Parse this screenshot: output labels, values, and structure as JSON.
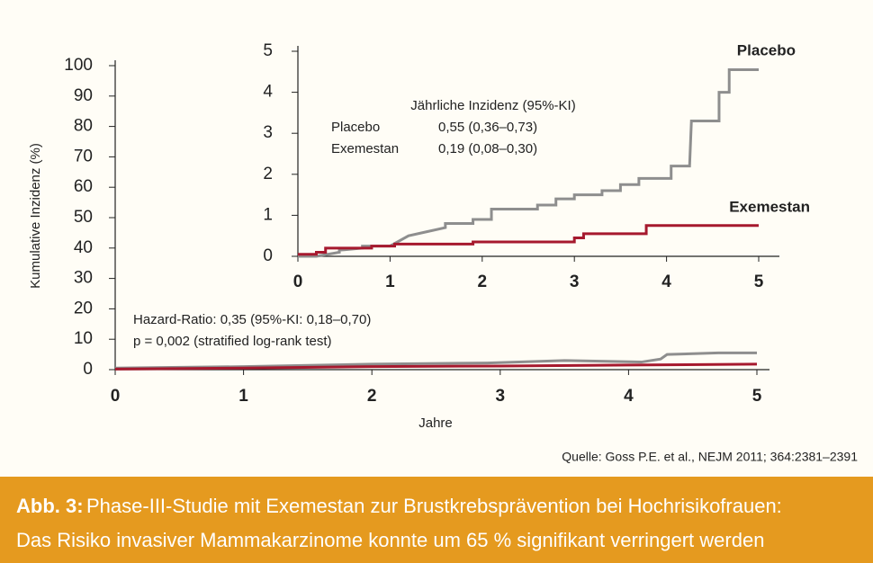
{
  "chart_data": [
    {
      "type": "line",
      "xlabel": "Jahre",
      "ylabel": "Kumulative Inzidenz (%)",
      "xlim": [
        0,
        5
      ],
      "ylim": [
        0,
        100
      ],
      "xticks": [
        0,
        1,
        2,
        3,
        4,
        5
      ],
      "yticks": [
        0,
        10,
        20,
        30,
        40,
        50,
        60,
        70,
        80,
        90,
        100
      ],
      "annotations": [
        "Hazard-Ratio: 0,35 (95%-KI: 0,18–0,70)",
        "p = 0,002 (stratified log-rank test)"
      ],
      "series": [
        {
          "color": "#8e8e8e",
          "x": [
            0,
            1,
            2,
            2.9,
            3.5,
            4.1,
            4.25,
            4.3,
            4.7,
            5
          ],
          "values": [
            0.5,
            1,
            1.8,
            2.2,
            3,
            2.5,
            3.5,
            5,
            5.5,
            5.5
          ]
        },
        {
          "color": "#a6192e",
          "x": [
            0,
            1,
            2,
            3,
            4,
            5
          ],
          "values": [
            0.2,
            0.5,
            1,
            1.2,
            1.5,
            1.8
          ]
        }
      ]
    },
    {
      "type": "line",
      "xlim": [
        0,
        5
      ],
      "ylim": [
        0,
        5
      ],
      "xticks": [
        0,
        1,
        2,
        3,
        4,
        5
      ],
      "yticks": [
        0,
        1,
        2,
        3,
        4,
        5
      ],
      "table": {
        "title": "Jährliche Inzidenz (95%-KI)",
        "rows": [
          [
            "Placebo",
            "0,55 (0,36–0,73)"
          ],
          [
            "Exemestan",
            "0,19 (0,08–0,30)"
          ]
        ]
      },
      "series": [
        {
          "name": "Placebo",
          "color": "#8e8e8e",
          "x": [
            0,
            0.2,
            0.45,
            0.45,
            0.7,
            0.7,
            1.0,
            1.2,
            1.4,
            1.6,
            1.6,
            1.9,
            1.9,
            2.1,
            2.1,
            2.6,
            2.6,
            2.8,
            2.8,
            3.0,
            3.0,
            3.3,
            3.3,
            3.5,
            3.5,
            3.7,
            3.7,
            4.05,
            4.05,
            4.25,
            4.27,
            4.57,
            4.57,
            4.68,
            4.68,
            5.0
          ],
          "values": [
            0,
            0,
            0.1,
            0.15,
            0.2,
            0.25,
            0.25,
            0.5,
            0.6,
            0.7,
            0.8,
            0.8,
            0.9,
            0.9,
            1.15,
            1.15,
            1.25,
            1.25,
            1.4,
            1.4,
            1.5,
            1.5,
            1.6,
            1.6,
            1.75,
            1.75,
            1.9,
            1.9,
            2.2,
            2.2,
            3.3,
            3.3,
            4.0,
            4.0,
            4.55,
            4.55
          ]
        },
        {
          "name": "Exemestan",
          "color": "#a6192e",
          "x": [
            0,
            0.2,
            0.2,
            0.3,
            0.3,
            0.8,
            0.8,
            1.05,
            1.05,
            1.9,
            1.9,
            3.0,
            3.0,
            3.1,
            3.1,
            3.78,
            3.78,
            5.0
          ],
          "values": [
            0.05,
            0.05,
            0.1,
            0.1,
            0.2,
            0.2,
            0.25,
            0.25,
            0.3,
            0.3,
            0.35,
            0.35,
            0.45,
            0.45,
            0.55,
            0.55,
            0.75,
            0.75
          ]
        }
      ]
    }
  ],
  "source": "Quelle: Goss P.E. et al., NEJM 2011; 364:2381–2391",
  "caption": {
    "label": "Abb. 3:",
    "lines": [
      "Phase-III-Studie mit Exemestan zur Brustkrebsprävention bei Hochrisikofrauen:",
      "Das Risiko invasiver Mammakarzinome konnte um 65 % signifikant verringert werden"
    ]
  }
}
